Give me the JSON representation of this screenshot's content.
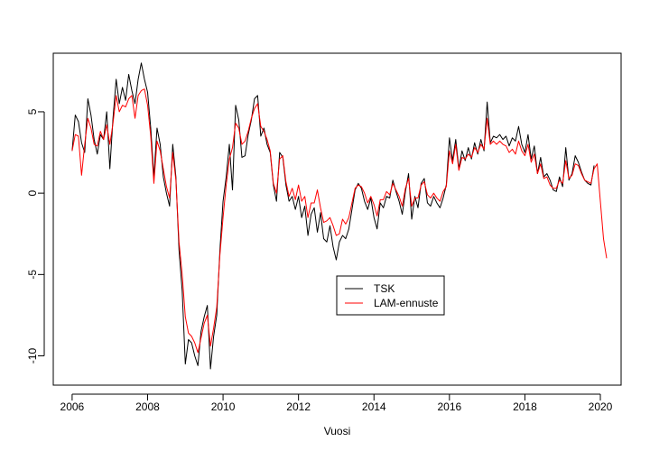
{
  "chart_data": {
    "type": "line",
    "title": "",
    "xlabel": "Vuosi",
    "ylabel": "",
    "xlim": [
      2005.5,
      2020.55
    ],
    "ylim": [
      -11.8,
      8.6
    ],
    "x_ticks": [
      2006,
      2008,
      2010,
      2012,
      2014,
      2016,
      2018,
      2020
    ],
    "x_tick_labels": [
      "2006",
      "2008",
      "2010",
      "2012",
      "2014",
      "2016",
      "2018",
      "2020"
    ],
    "y_ticks": [
      -10,
      -5,
      0,
      5
    ],
    "y_tick_labels": [
      "-10",
      "-5",
      "0",
      "5"
    ],
    "grid": false,
    "legend": {
      "position": "center-bottom",
      "entries": [
        "TSK",
        "LAM-ennuste"
      ]
    },
    "series": [
      {
        "name": "TSK",
        "color": "#000000",
        "x_start": 2006.0,
        "x_step": 0.0833333,
        "values": [
          2.6,
          4.8,
          4.4,
          3.1,
          2.5,
          5.8,
          4.8,
          3.3,
          2.4,
          3.6,
          3.3,
          5.0,
          1.5,
          4.6,
          7.0,
          5.5,
          6.5,
          5.7,
          7.3,
          6.3,
          5.5,
          7.0,
          8.0,
          7.0,
          6.2,
          4.0,
          1.0,
          4.0,
          3.0,
          1.0,
          0.0,
          -0.8,
          3.0,
          1.0,
          -3.5,
          -6.0,
          -10.5,
          -9.0,
          -9.2,
          -10.0,
          -10.6,
          -8.5,
          -7.6,
          -6.9,
          -10.8,
          -8.8,
          -7.5,
          -3.5,
          -0.5,
          1.0,
          3.0,
          0.2,
          5.4,
          4.5,
          2.2,
          2.3,
          3.6,
          4.5,
          5.8,
          6.0,
          3.5,
          4.0,
          3.0,
          2.5,
          0.5,
          -0.5,
          2.5,
          2.2,
          0.5,
          -0.5,
          -0.2,
          -1.0,
          -0.2,
          -1.5,
          -0.8,
          -2.6,
          -1.3,
          -0.9,
          -2.4,
          -1.2,
          -2.8,
          -3.0,
          -2.0,
          -3.3,
          -4.1,
          -3.0,
          -2.6,
          -2.8,
          -2.2,
          -1.0,
          0.2,
          0.6,
          0.3,
          -0.5,
          -1.0,
          -0.3,
          -1.5,
          -2.2,
          -0.6,
          -0.9,
          -0.2,
          -0.3,
          0.8,
          0.1,
          -0.5,
          -1.3,
          0.1,
          1.2,
          -1.6,
          -0.2,
          -0.9,
          0.6,
          0.9,
          -0.6,
          -0.8,
          -0.2,
          -0.6,
          -0.9,
          -0.3,
          0.5,
          3.4,
          2.0,
          3.3,
          1.5,
          2.6,
          2.0,
          2.8,
          2.1,
          3.1,
          2.4,
          3.3,
          2.6,
          5.6,
          3.1,
          3.5,
          3.4,
          3.6,
          3.3,
          3.5,
          2.9,
          3.4,
          3.2,
          4.1,
          3.0,
          2.5,
          3.6,
          2.1,
          2.9,
          1.2,
          2.2,
          1.0,
          1.2,
          0.8,
          0.2,
          0.1,
          1.0,
          0.4,
          2.8,
          0.8,
          1.2,
          2.3,
          1.9,
          1.3,
          0.8,
          0.6,
          0.5,
          1.7
        ]
      },
      {
        "name": "LAM-ennuste",
        "color": "#ff0000",
        "x_start": 2006.0,
        "x_step": 0.0833333,
        "values": [
          2.6,
          3.6,
          3.5,
          1.1,
          3.0,
          4.6,
          4.0,
          3.0,
          2.9,
          3.8,
          3.3,
          4.2,
          3.0,
          4.3,
          6.0,
          5.0,
          5.4,
          5.3,
          5.8,
          6.0,
          4.6,
          6.0,
          6.3,
          6.4,
          5.4,
          3.5,
          0.6,
          3.2,
          2.6,
          1.5,
          0.4,
          -0.3,
          2.5,
          0.8,
          -3.0,
          -5.0,
          -7.6,
          -8.6,
          -8.8,
          -9.2,
          -9.8,
          -8.9,
          -8.0,
          -7.5,
          -9.4,
          -8.3,
          -7.0,
          -3.8,
          -1.5,
          0.5,
          2.1,
          2.8,
          4.3,
          4.0,
          3.0,
          3.2,
          3.8,
          4.6,
          5.2,
          5.5,
          4.1,
          3.8,
          3.3,
          2.6,
          0.6,
          0.0,
          2.1,
          2.3,
          0.7,
          -0.2,
          0.3,
          -0.4,
          0.5,
          -0.5,
          -0.2,
          -1.5,
          -0.6,
          -0.6,
          0.2,
          -0.9,
          -1.8,
          -1.7,
          -1.5,
          -2.0,
          -2.6,
          -2.5,
          -1.6,
          -1.9,
          -1.5,
          -0.6,
          0.3,
          0.5,
          0.4,
          0.0,
          -0.6,
          -0.2,
          -0.7,
          -1.4,
          -0.4,
          -0.4,
          0.1,
          -0.1,
          0.6,
          0.2,
          -0.2,
          -0.8,
          0.3,
          0.9,
          -0.8,
          -0.3,
          -0.3,
          0.5,
          0.7,
          -0.1,
          -0.3,
          0.0,
          -0.3,
          -0.5,
          0.1,
          0.4,
          2.6,
          1.8,
          3.0,
          1.4,
          2.2,
          2.1,
          2.4,
          2.2,
          2.8,
          2.5,
          3.0,
          2.7,
          4.6,
          3.0,
          3.2,
          3.0,
          3.2,
          3.0,
          2.9,
          2.5,
          2.7,
          2.4,
          3.2,
          2.6,
          2.3,
          3.0,
          1.9,
          2.4,
          1.2,
          1.8,
          0.9,
          1.0,
          0.5,
          0.3,
          0.3,
          0.8,
          0.6,
          2.0,
          0.9,
          1.1,
          1.8,
          1.7,
          1.2,
          0.8,
          0.7,
          0.6,
          1.5,
          1.8,
          -0.5,
          -2.8,
          -4.0
        ]
      }
    ]
  }
}
